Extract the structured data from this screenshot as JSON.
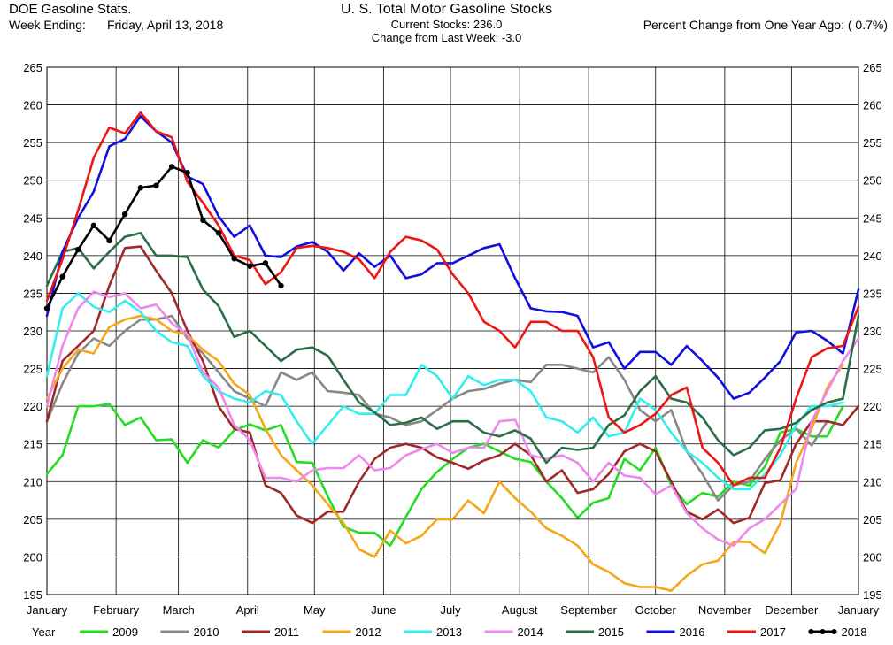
{
  "header": {
    "left_title": "DOE Gasoline Stats.",
    "week_label": "Week Ending:",
    "week_date": "Friday, April 13, 2018",
    "center_title": "U. S. Total Motor Gasoline Stocks",
    "current_stocks": "Current Stocks: 236.0",
    "weekly_change": "Change from Last Week: -3.0",
    "yoy_change": "Percent Change from One Year Ago: ( 0.7%)"
  },
  "chart_data": {
    "type": "line",
    "title": "U. S. Total Motor Gasoline Stocks",
    "ylim": [
      195,
      265
    ],
    "yticks": [
      195,
      200,
      205,
      210,
      215,
      220,
      225,
      230,
      235,
      240,
      245,
      250,
      255,
      260,
      265
    ],
    "x_unit": "week of year",
    "xlim": [
      1,
      53
    ],
    "month_labels": [
      "January",
      "February",
      "March",
      "April",
      "May",
      "June",
      "July",
      "August",
      "September",
      "October",
      "November",
      "December",
      "January"
    ],
    "month_ticks": [
      1,
      5.43,
      9.43,
      13.86,
      18.14,
      22.57,
      26.86,
      31.29,
      35.71,
      40,
      44.43,
      48.71,
      53
    ],
    "grid": true,
    "legend_position": "bottom",
    "legend_title": "Year",
    "series": [
      {
        "name": "2009",
        "color": "#22dd22",
        "values": [
          211,
          213.5,
          220,
          220,
          220.3,
          217.5,
          218.5,
          215.5,
          215.6,
          212.5,
          215.5,
          214.5,
          216.8,
          217.6,
          216.8,
          217.5,
          212.6,
          212.5,
          208,
          204,
          203.2,
          203.2,
          201.5,
          205.3,
          209,
          211.3,
          213,
          214.5,
          215,
          214,
          213,
          212.6,
          210,
          207.8,
          205.2,
          207.2,
          207.8,
          213,
          211.5,
          214.5,
          209.5,
          207,
          208.5,
          208,
          210,
          209.5,
          212,
          216.5,
          217,
          216,
          216,
          220
        ]
      },
      {
        "name": "2010",
        "color": "#888888",
        "values": [
          218,
          223,
          227,
          229,
          228,
          230,
          231.5,
          231.5,
          232,
          229,
          227,
          224.5,
          222,
          221,
          220,
          224.5,
          223.5,
          224.5,
          222,
          221.8,
          221.5,
          219,
          218.5,
          217.5,
          218,
          219.5,
          221,
          222,
          222.3,
          223,
          223.5,
          223.2,
          225.5,
          225.5,
          225,
          224.5,
          226.5,
          223.5,
          219.5,
          218,
          219.5,
          214,
          211,
          207.5,
          209.5,
          210,
          213,
          215.5,
          217,
          214.8,
          218
        ]
      },
      {
        "name": "2011",
        "color": "#a02828",
        "values": [
          218,
          226,
          228,
          230,
          236,
          241,
          241.2,
          238,
          235,
          230,
          226,
          220,
          217,
          216.5,
          209.5,
          208.5,
          205.5,
          204.5,
          206,
          206,
          210,
          213,
          214.5,
          215,
          214.5,
          213.2,
          212.5,
          211.7,
          212.8,
          213.5,
          215,
          213.5,
          210,
          211.5,
          208.5,
          209,
          211,
          214,
          215,
          214,
          210,
          206,
          205,
          206.3,
          204.5,
          205.2,
          209.8,
          210.2,
          215,
          218,
          218,
          217.5,
          220
        ]
      },
      {
        "name": "2012",
        "color": "#f5a71a",
        "values": [
          221,
          225,
          227.5,
          227,
          230.5,
          231.5,
          232,
          231.5,
          230,
          229.5,
          227.5,
          226,
          223,
          221.5,
          217,
          213.5,
          211.5,
          209.5,
          207,
          204.5,
          201,
          200,
          203.5,
          201.8,
          202.8,
          205,
          205,
          207.5,
          205.8,
          210,
          207.8,
          206,
          203.8,
          202.8,
          201.5,
          199,
          198,
          196.5,
          196,
          196,
          195.5,
          197.5,
          199,
          199.5,
          202,
          202,
          200.5,
          204.5,
          212.5,
          217,
          222.5,
          225.5
        ]
      },
      {
        "name": "2013",
        "color": "#33eeee",
        "values": [
          224,
          233,
          235,
          233.2,
          232.5,
          234,
          232.5,
          230,
          228.5,
          228,
          224,
          222,
          221,
          220.5,
          222,
          221.5,
          218,
          215,
          217.5,
          220,
          219,
          219,
          221.5,
          221.5,
          225.5,
          224,
          221,
          224,
          222.8,
          223.5,
          223.5,
          222,
          218.5,
          218,
          216.5,
          218.5,
          216,
          216.5,
          221,
          219.5,
          216.5,
          214,
          212.5,
          210.5,
          209,
          209,
          211,
          213.5,
          217.5,
          220,
          220,
          220.5
        ]
      },
      {
        "name": "2014",
        "color": "#ee88ee",
        "values": [
          220,
          228,
          233,
          235.2,
          234.5,
          235,
          233,
          233.5,
          231,
          229.5,
          224.5,
          222.5,
          217.5,
          215.5,
          210.5,
          210.5,
          210,
          211.5,
          211.8,
          211.8,
          213.5,
          211.5,
          211.8,
          213.5,
          214.3,
          215,
          213.8,
          214.5,
          214.5,
          218,
          218.2,
          213.5,
          213,
          213.5,
          212.5,
          210,
          212.5,
          210.8,
          210.5,
          208.3,
          209.5,
          205.8,
          203.8,
          202.3,
          201.5,
          203.8,
          205,
          207,
          209,
          218,
          222,
          226,
          229
        ]
      },
      {
        "name": "2015",
        "color": "#2a6e46",
        "values": [
          236,
          240.5,
          241,
          238.3,
          240.5,
          242.5,
          243,
          240,
          240,
          239.8,
          235.5,
          233.3,
          229.2,
          230,
          228,
          226,
          227.5,
          227.8,
          226.7,
          223.5,
          220.5,
          219.2,
          217.5,
          217.8,
          218.5,
          217,
          218,
          218,
          216.5,
          216,
          216.8,
          215.7,
          212.5,
          214.5,
          214.2,
          214.5,
          217.5,
          218.8,
          222,
          224,
          221,
          220.5,
          218.5,
          215.5,
          213.5,
          214.5,
          216.8,
          217,
          217.8,
          219.5,
          220.5,
          221,
          232
        ]
      },
      {
        "name": "2016",
        "color": "#1010dd",
        "values": [
          232,
          240.5,
          245,
          248.5,
          254.5,
          255.5,
          258.5,
          256.5,
          255,
          250.5,
          249.5,
          245.2,
          242.5,
          244,
          240,
          239.8,
          241.2,
          241.8,
          240.5,
          238,
          240.3,
          238.5,
          240,
          237,
          237.5,
          239,
          239,
          240,
          241,
          241.5,
          237,
          233,
          232.6,
          232.5,
          232,
          227.8,
          228.5,
          225,
          227.2,
          227.2,
          225.5,
          228,
          226,
          223.8,
          221,
          221.8,
          223.8,
          226,
          229.8,
          230,
          228.7,
          227,
          235.5
        ]
      },
      {
        "name": "2017",
        "color": "#ee1515",
        "values": [
          234,
          239.5,
          246,
          253,
          257,
          256.2,
          259,
          256.5,
          255.7,
          249.8,
          247,
          244,
          240,
          239.4,
          236.2,
          237.8,
          241,
          241.3,
          241,
          240.5,
          239.5,
          237,
          240.5,
          242.5,
          242,
          240.8,
          237.5,
          235,
          231.2,
          230,
          227.8,
          231.2,
          231.2,
          230,
          230,
          226.5,
          218.5,
          216.5,
          217.5,
          219,
          221.5,
          222.5,
          214.5,
          212.5,
          209.5,
          210.5,
          210.5,
          214.5,
          221,
          226.5,
          227.7,
          228,
          233.2
        ]
      },
      {
        "name": "2018",
        "color": "#000000",
        "marker": true,
        "values": [
          233,
          237.2,
          240.8,
          244,
          242,
          245.5,
          249,
          249.3,
          251.8,
          251,
          244.7,
          243,
          239.6,
          238.6,
          239,
          236
        ]
      }
    ]
  }
}
